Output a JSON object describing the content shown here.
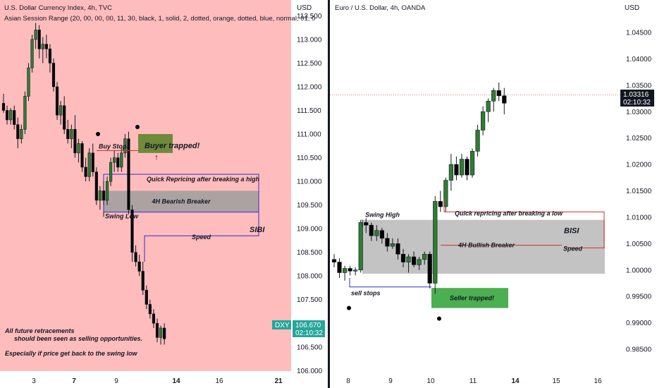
{
  "chart_data": [
    {
      "type": "candlestick",
      "title": "U.S. Dollar Currency Index, 4h, TVC",
      "subtitle": "Asian Session Range (20, 00, 00, 00, 11, 30, black, 1, solid, 2, dotted, orange, dotted, blue, normal, 01, 0",
      "currency": "USD",
      "y_ticks": [
        "113.500",
        "113.000",
        "112.500",
        "112.000",
        "111.500",
        "111.000",
        "110.500",
        "110.000",
        "109.500",
        "109.000",
        "108.500",
        "108.000",
        "107.500",
        "107.000",
        "106.500",
        "106.000"
      ],
      "ylim": [
        105.85,
        113.75
      ],
      "x_ticks": [
        "3",
        "7",
        "9",
        "14",
        "16",
        "21"
      ],
      "bold_x_ticks": [
        "7",
        "14",
        "21"
      ],
      "symbol_tag": "DXY",
      "last_price": "106.670",
      "countdown": "02:10:32",
      "ohlc": [
        [
          111.65,
          111.85,
          111.45,
          111.5
        ],
        [
          111.5,
          111.6,
          111.2,
          111.3
        ],
        [
          111.3,
          111.55,
          111.2,
          111.5
        ],
        [
          111.5,
          111.6,
          111.1,
          111.2
        ],
        [
          111.2,
          111.35,
          110.7,
          110.9
        ],
        [
          110.9,
          111.2,
          110.8,
          111.1
        ],
        [
          111.1,
          111.9,
          111.0,
          111.8
        ],
        [
          111.8,
          112.5,
          111.7,
          112.4
        ],
        [
          112.4,
          113.1,
          112.3,
          113.0
        ],
        [
          113.0,
          113.35,
          112.8,
          113.2
        ],
        [
          113.2,
          113.3,
          112.6,
          112.8
        ],
        [
          112.8,
          113.05,
          112.5,
          112.9
        ],
        [
          112.9,
          113.1,
          112.6,
          112.8
        ],
        [
          112.8,
          112.9,
          112.3,
          112.5
        ],
        [
          112.5,
          112.6,
          111.9,
          112.0
        ],
        [
          112.0,
          112.1,
          111.3,
          111.4
        ],
        [
          111.4,
          111.7,
          111.2,
          111.6
        ],
        [
          111.6,
          111.8,
          111.0,
          111.1
        ],
        [
          111.1,
          111.3,
          110.8,
          110.9
        ],
        [
          110.9,
          111.2,
          110.7,
          111.1
        ],
        [
          111.1,
          111.4,
          110.5,
          110.6
        ],
        [
          110.6,
          110.9,
          110.4,
          110.8
        ],
        [
          110.8,
          110.85,
          110.2,
          110.3
        ],
        [
          110.3,
          110.5,
          110.0,
          110.1
        ],
        [
          110.1,
          110.7,
          110.0,
          110.6
        ],
        [
          110.6,
          110.8,
          110.1,
          110.2
        ],
        [
          110.2,
          110.3,
          109.5,
          109.6
        ],
        [
          109.6,
          109.9,
          109.4,
          109.8
        ],
        [
          109.8,
          110.0,
          109.5,
          109.6
        ],
        [
          109.6,
          110.1,
          109.5,
          110.0
        ],
        [
          110.0,
          110.5,
          109.9,
          110.4
        ],
        [
          110.4,
          110.65,
          110.2,
          110.5
        ],
        [
          110.5,
          110.6,
          110.2,
          110.3
        ],
        [
          110.3,
          110.7,
          110.2,
          110.6
        ],
        [
          110.6,
          111.0,
          110.5,
          110.9
        ],
        [
          110.9,
          111.05,
          109.3,
          109.4
        ],
        [
          109.4,
          109.5,
          108.3,
          108.5
        ],
        [
          108.5,
          108.65,
          108.2,
          108.3
        ],
        [
          108.3,
          108.45,
          108.0,
          108.1
        ],
        [
          108.1,
          108.3,
          107.6,
          107.7
        ],
        [
          107.7,
          107.8,
          107.3,
          107.4
        ],
        [
          107.4,
          107.5,
          107.1,
          107.2
        ],
        [
          107.2,
          107.3,
          106.9,
          107.0
        ],
        [
          107.0,
          107.1,
          106.6,
          106.7
        ],
        [
          106.7,
          106.95,
          106.55,
          106.9
        ],
        [
          106.9,
          107.0,
          106.55,
          106.67
        ]
      ],
      "annotations": [
        "Buy Stops",
        "Buyer trapped!",
        "Quick Repricing after breaking a high",
        "4H Bearish Breaker",
        "Swing Low",
        "Speed",
        "SIBI"
      ],
      "notes": [
        "All future retracements",
        "should been seen as selling opportunities.",
        "Especially if price get back to the swing low"
      ],
      "colors": {
        "up": "#2e7d32",
        "down": "#000000",
        "background": "#ffbcbc",
        "breaker": "#9e9e9e",
        "trapped": "#4caf50",
        "blue_box": "#2f2fd6",
        "red_line": "#d32f2f"
      }
    },
    {
      "type": "candlestick",
      "title": "Euro / U.S. Dollar, 4h, OANDA",
      "currency": "USD",
      "y_ticks": [
        "1.04500",
        "1.04000",
        "1.03500",
        "1.03000",
        "1.02500",
        "1.02000",
        "1.01500",
        "1.01000",
        "1.00500",
        "1.00000",
        "0.99500",
        "0.99000",
        "0.98500"
      ],
      "ylim": [
        0.98243,
        1.04795
      ],
      "x_ticks": [
        "8",
        "9",
        "10",
        "11",
        "14",
        "15",
        "16"
      ],
      "bold_x_ticks": [
        "14"
      ],
      "last_price": "1.03316",
      "countdown": "02:10:32",
      "ohlc": [
        [
          1.002,
          1.003,
          1.0005,
          1.0015
        ],
        [
          1.0015,
          1.0022,
          0.9985,
          0.9995
        ],
        [
          0.9995,
          1.0008,
          0.998,
          1.0003
        ],
        [
          1.0003,
          1.0008,
          0.999,
          0.9998
        ],
        [
          0.9998,
          1.0005,
          0.999,
          1.0
        ],
        [
          1.0,
          1.0095,
          0.9995,
          1.009
        ],
        [
          1.009,
          1.0098,
          1.007,
          1.0085
        ],
        [
          1.0085,
          1.009,
          1.0055,
          1.0065
        ],
        [
          1.0065,
          1.0085,
          1.0055,
          1.0075
        ],
        [
          1.0075,
          1.008,
          1.005,
          1.006
        ],
        [
          1.006,
          1.007,
          1.0035,
          1.0045
        ],
        [
          1.0045,
          1.006,
          1.004,
          1.005
        ],
        [
          1.005,
          1.006,
          1.002,
          1.003
        ],
        [
          1.003,
          1.004,
          1.0005,
          1.0015
        ],
        [
          1.0015,
          1.003,
          0.9995,
          1.0025
        ],
        [
          1.0025,
          1.0035,
          1.0005,
          1.001
        ],
        [
          1.001,
          1.0025,
          1.0,
          1.002
        ],
        [
          1.002,
          1.0035,
          1.001,
          1.003
        ],
        [
          1.003,
          1.0035,
          0.9965,
          0.9975
        ],
        [
          0.9975,
          1.014,
          0.9955,
          1.013
        ],
        [
          1.013,
          1.015,
          1.011,
          1.012
        ],
        [
          1.012,
          1.0175,
          1.011,
          1.017
        ],
        [
          1.017,
          1.022,
          1.015,
          1.02
        ],
        [
          1.02,
          1.0215,
          1.017,
          1.018
        ],
        [
          1.018,
          1.022,
          1.0175,
          1.021
        ],
        [
          1.021,
          1.0215,
          1.017,
          1.018
        ],
        [
          1.018,
          1.023,
          1.0175,
          1.0225
        ],
        [
          1.0225,
          1.0275,
          1.0215,
          1.0265
        ],
        [
          1.0265,
          1.031,
          1.0255,
          1.03
        ],
        [
          1.03,
          1.0325,
          1.028,
          1.032
        ],
        [
          1.032,
          1.0345,
          1.03,
          1.034
        ],
        [
          1.034,
          1.0355,
          1.032,
          1.033
        ],
        [
          1.033,
          1.0345,
          1.0295,
          1.0316
        ]
      ],
      "annotations": [
        "Swing High",
        "Quick repricing after breaking a low",
        "BISI",
        "4H Bullish Breaker",
        "Speed",
        "sell stops",
        "Seller trapped!"
      ],
      "colors": {
        "up": "#2e7d32",
        "down": "#000000",
        "background": "#ffffff",
        "breaker": "#bdbdbd",
        "trapped": "#4caf50",
        "blue_box": "#2f2fd6",
        "red_line": "#d32f2f"
      }
    }
  ]
}
